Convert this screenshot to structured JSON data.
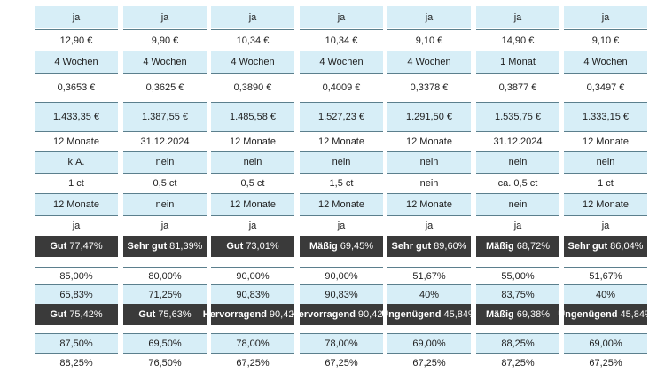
{
  "columns": [
    {
      "r1": "ja",
      "r2": "12,90 €",
      "r3": "4 Wochen",
      "r4": "0,3653 €",
      "r5": "1.433,35 €",
      "r6": "12 Monate",
      "r7": "k.A.",
      "r8": "1 ct",
      "r9": "12 Monate",
      "r10": "ja",
      "r11": {
        "grade": "Gut",
        "pct": "77,47%"
      },
      "r12": "85,00%",
      "r13": "65,83%",
      "r14": {
        "grade": "Gut",
        "pct": "75,42%"
      },
      "r15": "87,50%",
      "r16": "88,25%"
    },
    {
      "r1": "ja",
      "r2": "9,90 €",
      "r3": "4 Wochen",
      "r4": "0,3625 €",
      "r5": "1.387,55 €",
      "r6": "31.12.2024",
      "r7": "nein",
      "r8": "0,5 ct",
      "r9": "nein",
      "r10": "ja",
      "r11": {
        "grade": "Sehr gut",
        "pct": "81,39%"
      },
      "r12": "80,00%",
      "r13": "71,25%",
      "r14": {
        "grade": "Gut",
        "pct": "75,63%"
      },
      "r15": "69,50%",
      "r16": "76,50%"
    },
    {
      "r1": "ja",
      "r2": "10,34 €",
      "r3": "4 Wochen",
      "r4": "0,3890 €",
      "r5": "1.485,58 €",
      "r6": "12 Monate",
      "r7": "nein",
      "r8": "0,5 ct",
      "r9": "12 Monate",
      "r10": "ja",
      "r11": {
        "grade": "Gut",
        "pct": "73,01%"
      },
      "r12": "90,00%",
      "r13": "90,83%",
      "r14": {
        "grade": "Hervorragend",
        "pct": "90,42%"
      },
      "r15": "78,00%",
      "r16": "67,25%"
    },
    {
      "r1": "ja",
      "r2": "10,34 €",
      "r3": "4 Wochen",
      "r4": "0,4009 €",
      "r5": "1.527,23 €",
      "r6": "12 Monate",
      "r7": "nein",
      "r8": "1,5 ct",
      "r9": "12 Monate",
      "r10": "ja",
      "r11": {
        "grade": "Mäßig",
        "pct": "69,45%"
      },
      "r12": "90,00%",
      "r13": "90,83%",
      "r14": {
        "grade": "Hervorragend",
        "pct": "90,42%"
      },
      "r15": "78,00%",
      "r16": "67,25%"
    },
    {
      "r1": "ja",
      "r2": "9,10 €",
      "r3": "4 Wochen",
      "r4": "0,3378 €",
      "r5": "1.291,50 €",
      "r6": "12 Monate",
      "r7": "nein",
      "r8": "nein",
      "r9": "12 Monate",
      "r10": "ja",
      "r11": {
        "grade": "Sehr gut",
        "pct": "89,60%"
      },
      "r12": "51,67%",
      "r13": "40%",
      "r14": {
        "grade": "Ungenügend",
        "pct": "45,84%"
      },
      "r15": "69,00%",
      "r16": "67,25%"
    },
    {
      "r1": "ja",
      "r2": "14,90 €",
      "r3": "1 Monat",
      "r4": "0,3877 €",
      "r5": "1.535,75 €",
      "r6": "31.12.2024",
      "r7": "nein",
      "r8": "ca. 0,5 ct",
      "r9": "nein",
      "r10": "ja",
      "r11": {
        "grade": "Mäßig",
        "pct": "68,72%"
      },
      "r12": "55,00%",
      "r13": "83,75%",
      "r14": {
        "grade": "Mäßig",
        "pct": "69,38%"
      },
      "r15": "88,25%",
      "r16": "87,25%"
    },
    {
      "r1": "ja",
      "r2": "9,10 €",
      "r3": "4 Wochen",
      "r4": "0,3497 €",
      "r5": "1.333,15 €",
      "r6": "12 Monate",
      "r7": "nein",
      "r8": "1 ct",
      "r9": "12 Monate",
      "r10": "ja",
      "r11": {
        "grade": "Sehr gut",
        "pct": "86,04%"
      },
      "r12": "51,67%",
      "r13": "40%",
      "r14": {
        "grade": "Ungenügend",
        "pct": "45,84%"
      },
      "r15": "69,00%",
      "r16": "67,25%"
    }
  ]
}
